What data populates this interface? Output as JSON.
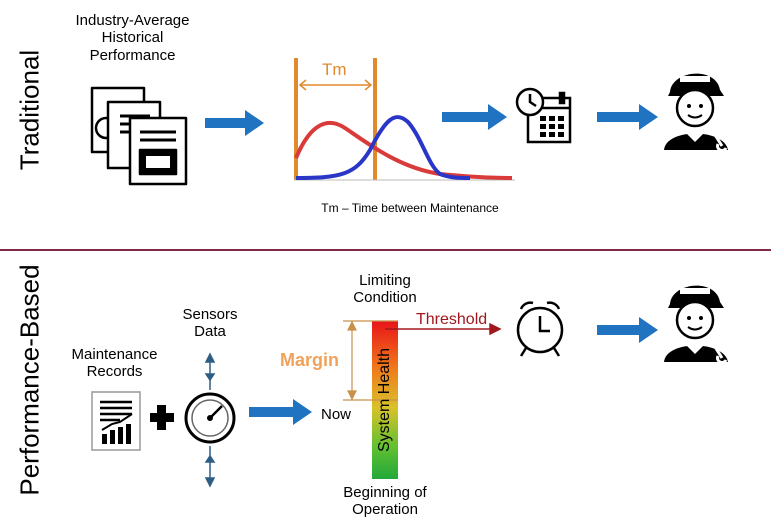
{
  "traditional": {
    "section_label": "Traditional",
    "source_label": "Industry-Average\nHistorical\nPerformance",
    "tm_label": "Tm",
    "caption": "Tm – Time between Maintenance"
  },
  "performance": {
    "section_label": "Performance-Based",
    "records_label": "Maintenance\nRecords",
    "sensors_label": "Sensors\nData",
    "limiting_label": "Limiting\nCondition",
    "threshold_label": "Threshold",
    "margin_label": "Margin",
    "now_label": "Now",
    "health_label": "System Health",
    "beginning_label": "Beginning of\nOperation"
  },
  "colors": {
    "arrow_blue": "#1f73c0",
    "tm_orange": "#e08a2c",
    "curve_red": "#d93a3a",
    "curve_blue": "#2a36c8",
    "divider": "#7d2a45",
    "threshold_red": "#a0181d",
    "margin_orange": "#f0a25a"
  },
  "icons": [
    "documents-icon",
    "calendar-icon",
    "mechanic-icon",
    "report-icon",
    "plus-icon",
    "gauge-icon",
    "alarm-clock-icon"
  ]
}
